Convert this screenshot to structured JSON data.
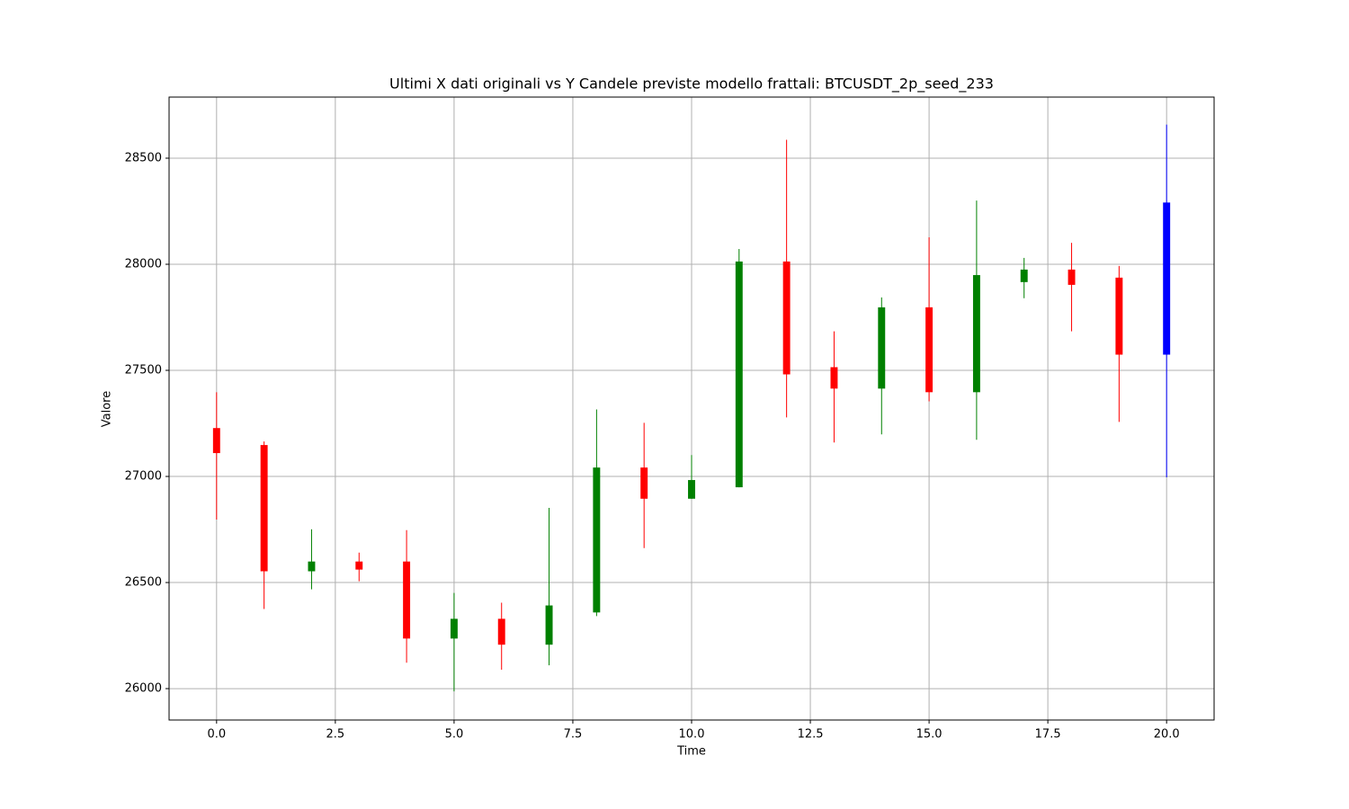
{
  "chart_data": {
    "type": "candlestick",
    "title": "Ultimi X dati originali vs Y Candele previste modello frattali: BTCUSDT_2p_seed_233",
    "x_label": "Time",
    "y_label": "Valore",
    "x": [
      0,
      1,
      2,
      3,
      4,
      5,
      6,
      7,
      8,
      9,
      10,
      11,
      12,
      13,
      14,
      15,
      16,
      17,
      18,
      19,
      20
    ],
    "open": [
      27228,
      27148,
      26553,
      26599,
      26599,
      26236,
      26329,
      26207,
      26359,
      27042,
      26895,
      26949,
      28013,
      27515,
      27414,
      27797,
      27397,
      27916,
      27975,
      27937,
      27574
    ],
    "high": [
      27397,
      27165,
      26751,
      26641,
      26747,
      26451,
      26405,
      26852,
      27316,
      27253,
      27101,
      28072,
      28587,
      27684,
      27844,
      28127,
      28300,
      28030,
      28101,
      27992,
      28658
    ],
    "low": [
      26797,
      26375,
      26468,
      26506,
      26122,
      25987,
      26089,
      26110,
      26342,
      26662,
      26895,
      26949,
      27278,
      27160,
      27198,
      27354,
      27173,
      27840,
      27684,
      27257,
      26996
    ],
    "close": [
      27110,
      26553,
      26599,
      26561,
      26236,
      26329,
      26207,
      26392,
      27042,
      26895,
      26983,
      28013,
      27481,
      27414,
      27797,
      27397,
      27949,
      27975,
      27903,
      27574,
      28291
    ],
    "colors": [
      "red",
      "red",
      "green",
      "red",
      "red",
      "green",
      "red",
      "green",
      "green",
      "red",
      "green",
      "green",
      "red",
      "red",
      "green",
      "red",
      "green",
      "green",
      "red",
      "red",
      "blue"
    ],
    "xlim": [
      -1,
      21
    ],
    "ylim": [
      25852,
      28788
    ],
    "xticks": [
      {
        "value": 0,
        "label": "0.0"
      },
      {
        "value": 2.5,
        "label": "2.5"
      },
      {
        "value": 5,
        "label": "5.0"
      },
      {
        "value": 7.5,
        "label": "7.5"
      },
      {
        "value": 10,
        "label": "10.0"
      },
      {
        "value": 12.5,
        "label": "12.5"
      },
      {
        "value": 15,
        "label": "15.0"
      },
      {
        "value": 17.5,
        "label": "17.5"
      },
      {
        "value": 20,
        "label": "20.0"
      }
    ],
    "yticks": [
      26000,
      26500,
      27000,
      27500,
      28000,
      28500
    ],
    "grid": true
  }
}
